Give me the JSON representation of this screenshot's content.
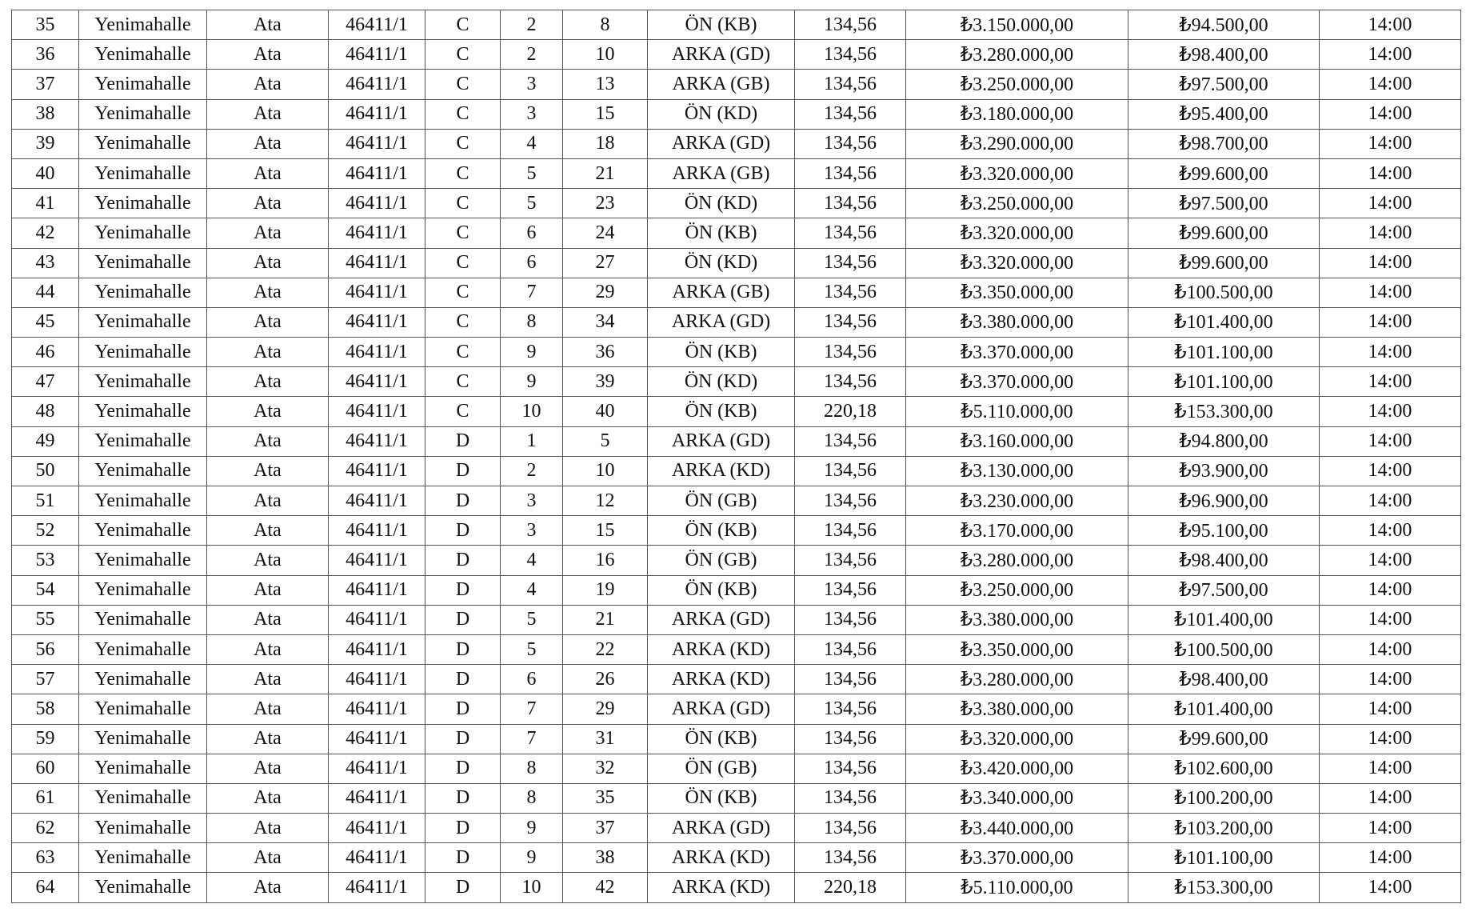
{
  "table": {
    "currency_symbol": "₺",
    "rows": [
      [
        "35",
        "Yenimahalle",
        "Ata",
        "46411/1",
        "C",
        "2",
        "8",
        "ÖN (KB)",
        "134,56",
        "₺3.150.000,00",
        "₺94.500,00",
        "14:00"
      ],
      [
        "36",
        "Yenimahalle",
        "Ata",
        "46411/1",
        "C",
        "2",
        "10",
        "ARKA (GD)",
        "134,56",
        "₺3.280.000,00",
        "₺98.400,00",
        "14:00"
      ],
      [
        "37",
        "Yenimahalle",
        "Ata",
        "46411/1",
        "C",
        "3",
        "13",
        "ARKA (GB)",
        "134,56",
        "₺3.250.000,00",
        "₺97.500,00",
        "14:00"
      ],
      [
        "38",
        "Yenimahalle",
        "Ata",
        "46411/1",
        "C",
        "3",
        "15",
        "ÖN (KD)",
        "134,56",
        "₺3.180.000,00",
        "₺95.400,00",
        "14:00"
      ],
      [
        "39",
        "Yenimahalle",
        "Ata",
        "46411/1",
        "C",
        "4",
        "18",
        "ARKA (GD)",
        "134,56",
        "₺3.290.000,00",
        "₺98.700,00",
        "14:00"
      ],
      [
        "40",
        "Yenimahalle",
        "Ata",
        "46411/1",
        "C",
        "5",
        "21",
        "ARKA (GB)",
        "134,56",
        "₺3.320.000,00",
        "₺99.600,00",
        "14:00"
      ],
      [
        "41",
        "Yenimahalle",
        "Ata",
        "46411/1",
        "C",
        "5",
        "23",
        "ÖN (KD)",
        "134,56",
        "₺3.250.000,00",
        "₺97.500,00",
        "14:00"
      ],
      [
        "42",
        "Yenimahalle",
        "Ata",
        "46411/1",
        "C",
        "6",
        "24",
        "ÖN (KB)",
        "134,56",
        "₺3.320.000,00",
        "₺99.600,00",
        "14:00"
      ],
      [
        "43",
        "Yenimahalle",
        "Ata",
        "46411/1",
        "C",
        "6",
        "27",
        "ÖN (KD)",
        "134,56",
        "₺3.320.000,00",
        "₺99.600,00",
        "14:00"
      ],
      [
        "44",
        "Yenimahalle",
        "Ata",
        "46411/1",
        "C",
        "7",
        "29",
        "ARKA (GB)",
        "134,56",
        "₺3.350.000,00",
        "₺100.500,00",
        "14:00"
      ],
      [
        "45",
        "Yenimahalle",
        "Ata",
        "46411/1",
        "C",
        "8",
        "34",
        "ARKA (GD)",
        "134,56",
        "₺3.380.000,00",
        "₺101.400,00",
        "14:00"
      ],
      [
        "46",
        "Yenimahalle",
        "Ata",
        "46411/1",
        "C",
        "9",
        "36",
        "ÖN (KB)",
        "134,56",
        "₺3.370.000,00",
        "₺101.100,00",
        "14:00"
      ],
      [
        "47",
        "Yenimahalle",
        "Ata",
        "46411/1",
        "C",
        "9",
        "39",
        "ÖN (KD)",
        "134,56",
        "₺3.370.000,00",
        "₺101.100,00",
        "14:00"
      ],
      [
        "48",
        "Yenimahalle",
        "Ata",
        "46411/1",
        "C",
        "10",
        "40",
        "ÖN (KB)",
        "220,18",
        "₺5.110.000,00",
        "₺153.300,00",
        "14:00"
      ],
      [
        "49",
        "Yenimahalle",
        "Ata",
        "46411/1",
        "D",
        "1",
        "5",
        "ARKA (GD)",
        "134,56",
        "₺3.160.000,00",
        "₺94.800,00",
        "14:00"
      ],
      [
        "50",
        "Yenimahalle",
        "Ata",
        "46411/1",
        "D",
        "2",
        "10",
        "ARKA (KD)",
        "134,56",
        "₺3.130.000,00",
        "₺93.900,00",
        "14:00"
      ],
      [
        "51",
        "Yenimahalle",
        "Ata",
        "46411/1",
        "D",
        "3",
        "12",
        "ÖN (GB)",
        "134,56",
        "₺3.230.000,00",
        "₺96.900,00",
        "14:00"
      ],
      [
        "52",
        "Yenimahalle",
        "Ata",
        "46411/1",
        "D",
        "3",
        "15",
        "ÖN (KB)",
        "134,56",
        "₺3.170.000,00",
        "₺95.100,00",
        "14:00"
      ],
      [
        "53",
        "Yenimahalle",
        "Ata",
        "46411/1",
        "D",
        "4",
        "16",
        "ÖN (GB)",
        "134,56",
        "₺3.280.000,00",
        "₺98.400,00",
        "14:00"
      ],
      [
        "54",
        "Yenimahalle",
        "Ata",
        "46411/1",
        "D",
        "4",
        "19",
        "ÖN (KB)",
        "134,56",
        "₺3.250.000,00",
        "₺97.500,00",
        "14:00"
      ],
      [
        "55",
        "Yenimahalle",
        "Ata",
        "46411/1",
        "D",
        "5",
        "21",
        "ARKA (GD)",
        "134,56",
        "₺3.380.000,00",
        "₺101.400,00",
        "14:00"
      ],
      [
        "56",
        "Yenimahalle",
        "Ata",
        "46411/1",
        "D",
        "5",
        "22",
        "ARKA (KD)",
        "134,56",
        "₺3.350.000,00",
        "₺100.500,00",
        "14:00"
      ],
      [
        "57",
        "Yenimahalle",
        "Ata",
        "46411/1",
        "D",
        "6",
        "26",
        "ARKA (KD)",
        "134,56",
        "₺3.280.000,00",
        "₺98.400,00",
        "14:00"
      ],
      [
        "58",
        "Yenimahalle",
        "Ata",
        "46411/1",
        "D",
        "7",
        "29",
        "ARKA (GD)",
        "134,56",
        "₺3.380.000,00",
        "₺101.400,00",
        "14:00"
      ],
      [
        "59",
        "Yenimahalle",
        "Ata",
        "46411/1",
        "D",
        "7",
        "31",
        "ÖN (KB)",
        "134,56",
        "₺3.320.000,00",
        "₺99.600,00",
        "14:00"
      ],
      [
        "60",
        "Yenimahalle",
        "Ata",
        "46411/1",
        "D",
        "8",
        "32",
        "ÖN (GB)",
        "134,56",
        "₺3.420.000,00",
        "₺102.600,00",
        "14:00"
      ],
      [
        "61",
        "Yenimahalle",
        "Ata",
        "46411/1",
        "D",
        "8",
        "35",
        "ÖN (KB)",
        "134,56",
        "₺3.340.000,00",
        "₺100.200,00",
        "14:00"
      ],
      [
        "62",
        "Yenimahalle",
        "Ata",
        "46411/1",
        "D",
        "9",
        "37",
        "ARKA (GD)",
        "134,56",
        "₺3.440.000,00",
        "₺103.200,00",
        "14:00"
      ],
      [
        "63",
        "Yenimahalle",
        "Ata",
        "46411/1",
        "D",
        "9",
        "38",
        "ARKA (KD)",
        "134,56",
        "₺3.370.000,00",
        "₺101.100,00",
        "14:00"
      ],
      [
        "64",
        "Yenimahalle",
        "Ata",
        "46411/1",
        "D",
        "10",
        "42",
        "ARKA (KD)",
        "220,18",
        "₺5.110.000,00",
        "₺153.300,00",
        "14:00"
      ]
    ]
  }
}
